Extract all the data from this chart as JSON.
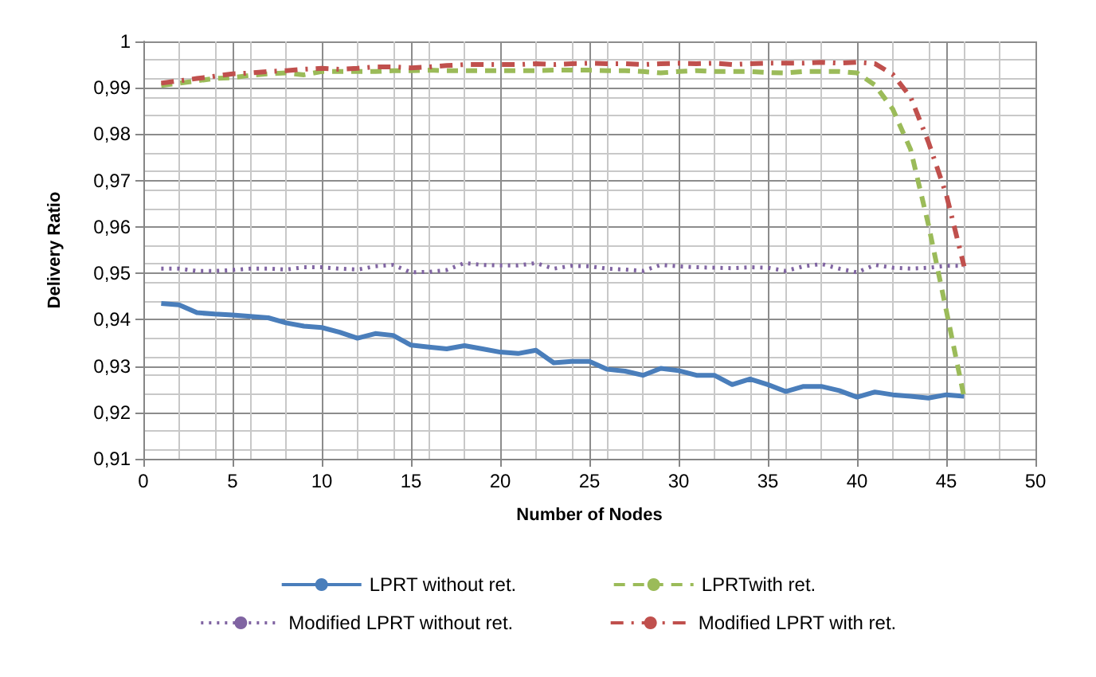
{
  "chart_data": {
    "type": "line",
    "xlabel": "Number of Nodes",
    "ylabel": "Delivery Ratio",
    "x": [
      1,
      2,
      3,
      4,
      5,
      6,
      7,
      8,
      9,
      10,
      11,
      12,
      13,
      14,
      15,
      16,
      17,
      18,
      19,
      20,
      21,
      22,
      23,
      24,
      25,
      26,
      27,
      28,
      29,
      30,
      31,
      32,
      33,
      34,
      35,
      36,
      37,
      38,
      39,
      40,
      41,
      42,
      43,
      44,
      45,
      46
    ],
    "xlim": [
      0,
      50
    ],
    "xticks": [
      0,
      5,
      10,
      15,
      20,
      25,
      30,
      35,
      40,
      45,
      50
    ],
    "ylim": [
      0.91,
      1
    ],
    "yticks": [
      {
        "value": 0.91,
        "label": "0,91"
      },
      {
        "value": 0.92,
        "label": "0,92"
      },
      {
        "value": 0.93,
        "label": "0,93"
      },
      {
        "value": 0.94,
        "label": "0,94"
      },
      {
        "value": 0.95,
        "label": "0,95"
      },
      {
        "value": 0.96,
        "label": "0,96"
      },
      {
        "value": 0.97,
        "label": "0,97"
      },
      {
        "value": 0.98,
        "label": "0,98"
      },
      {
        "value": 0.99,
        "label": "0,99"
      },
      {
        "value": 1,
        "label": "1"
      }
    ],
    "grid": true,
    "legend": "bottom",
    "marker": "none",
    "series": [
      {
        "name": "LPRT without ret.",
        "color": "#4a7ebb",
        "line_style": "solid",
        "values": [
          0.9435,
          0.9432,
          0.9415,
          0.9412,
          0.941,
          0.9407,
          0.9404,
          0.9393,
          0.9386,
          0.9383,
          0.9373,
          0.936,
          0.937,
          0.9366,
          0.9345,
          0.9341,
          0.9337,
          0.9344,
          0.9337,
          0.933,
          0.9327,
          0.9334,
          0.9307,
          0.931,
          0.931,
          0.9293,
          0.9289,
          0.928,
          0.9295,
          0.929,
          0.928,
          0.928,
          0.926,
          0.9272,
          0.926,
          0.9245,
          0.9256,
          0.9256,
          0.9247,
          0.9233,
          0.9244,
          0.9238,
          0.9235,
          0.9231,
          0.9238,
          0.9235
        ]
      },
      {
        "name": "LPRTwith ret.",
        "color": "#9bbb59",
        "line_style": "dashed",
        "values": [
          0.9905,
          0.991,
          0.9915,
          0.992,
          0.9922,
          0.9927,
          0.993,
          0.9932,
          0.9928,
          0.9935,
          0.9935,
          0.9935,
          0.9935,
          0.9937,
          0.9937,
          0.9938,
          0.9937,
          0.9937,
          0.9937,
          0.9937,
          0.9937,
          0.9937,
          0.9938,
          0.9938,
          0.9938,
          0.9937,
          0.9937,
          0.9935,
          0.9932,
          0.9935,
          0.9937,
          0.9935,
          0.9935,
          0.9935,
          0.9933,
          0.9932,
          0.9935,
          0.9935,
          0.9935,
          0.9932,
          0.9906,
          0.9854,
          0.9767,
          0.9605,
          0.942,
          0.9233
        ]
      },
      {
        "name": "Modified LPRT without ret.",
        "color": "#8064a2",
        "line_style": "dotted",
        "values": [
          0.951,
          0.951,
          0.9505,
          0.9505,
          0.9507,
          0.951,
          0.951,
          0.9508,
          0.9513,
          0.9513,
          0.951,
          0.9508,
          0.9515,
          0.9518,
          0.9502,
          0.9503,
          0.9507,
          0.9522,
          0.9518,
          0.9517,
          0.9517,
          0.9522,
          0.951,
          0.9516,
          0.9515,
          0.951,
          0.9508,
          0.9505,
          0.9518,
          0.9515,
          0.9513,
          0.9512,
          0.9511,
          0.9513,
          0.9512,
          0.9505,
          0.9515,
          0.952,
          0.951,
          0.9502,
          0.9518,
          0.9512,
          0.951,
          0.9512,
          0.9516,
          0.9516
        ]
      },
      {
        "name": "Modified LPRT with ret.",
        "color": "#c0504d",
        "line_style": "dashdot",
        "values": [
          0.991,
          0.9915,
          0.992,
          0.9925,
          0.993,
          0.9932,
          0.9935,
          0.9937,
          0.994,
          0.9942,
          0.994,
          0.9942,
          0.9945,
          0.9945,
          0.9943,
          0.9945,
          0.9948,
          0.995,
          0.995,
          0.995,
          0.995,
          0.9952,
          0.995,
          0.9952,
          0.9953,
          0.9952,
          0.9952,
          0.995,
          0.9952,
          0.9953,
          0.9952,
          0.9953,
          0.995,
          0.9952,
          0.9953,
          0.9953,
          0.9953,
          0.9955,
          0.9953,
          0.9955,
          0.9952,
          0.9929,
          0.988,
          0.9783,
          0.967,
          0.9515
        ]
      }
    ]
  }
}
